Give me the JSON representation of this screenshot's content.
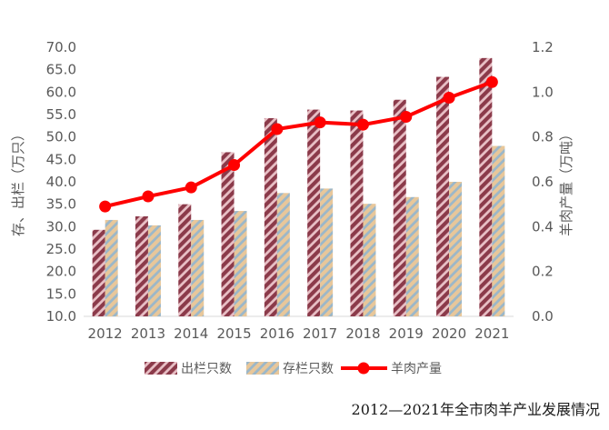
{
  "caption": "2012—2021年全市肉羊产业发展情况",
  "chart_data": {
    "type": "bar",
    "categories": [
      "2012",
      "2013",
      "2014",
      "2015",
      "2016",
      "2017",
      "2018",
      "2019",
      "2020",
      "2021"
    ],
    "series": [
      {
        "name": "出栏只数",
        "type": "bar",
        "axis": "left",
        "color": "#8b3a4a",
        "pattern": "diagonal-stripes-maroon-pink",
        "values": [
          29.3,
          32.3,
          35.0,
          46.6,
          54.2,
          56.1,
          55.9,
          58.3,
          63.4,
          67.6
        ]
      },
      {
        "name": "存栏只数",
        "type": "bar",
        "axis": "left",
        "color": "#9bb7c9",
        "pattern": "diagonal-stripes-tan-blue",
        "values": [
          31.5,
          30.3,
          31.5,
          33.5,
          37.5,
          38.5,
          35.1,
          36.6,
          40.0,
          48.0
        ]
      },
      {
        "name": "羊肉产量",
        "type": "line",
        "axis": "right",
        "color": "#ff0000",
        "values": [
          0.49,
          0.535,
          0.575,
          0.675,
          0.835,
          0.865,
          0.855,
          0.89,
          0.975,
          1.045
        ]
      }
    ],
    "ylabel": "存、出栏（万只）",
    "ylim": [
      10,
      70
    ],
    "yticks": [
      "10.0",
      "15.0",
      "20.0",
      "25.0",
      "30.0",
      "35.0",
      "40.0",
      "45.0",
      "50.0",
      "55.0",
      "60.0",
      "65.0",
      "70.0"
    ],
    "y2label": "羊肉产量（万吨）",
    "y2lim": [
      0,
      1.2
    ],
    "y2ticks": [
      "0.0",
      "0.2",
      "0.4",
      "0.6",
      "0.8",
      "1.0",
      "1.2"
    ],
    "grid": false,
    "legend": "bottom"
  }
}
